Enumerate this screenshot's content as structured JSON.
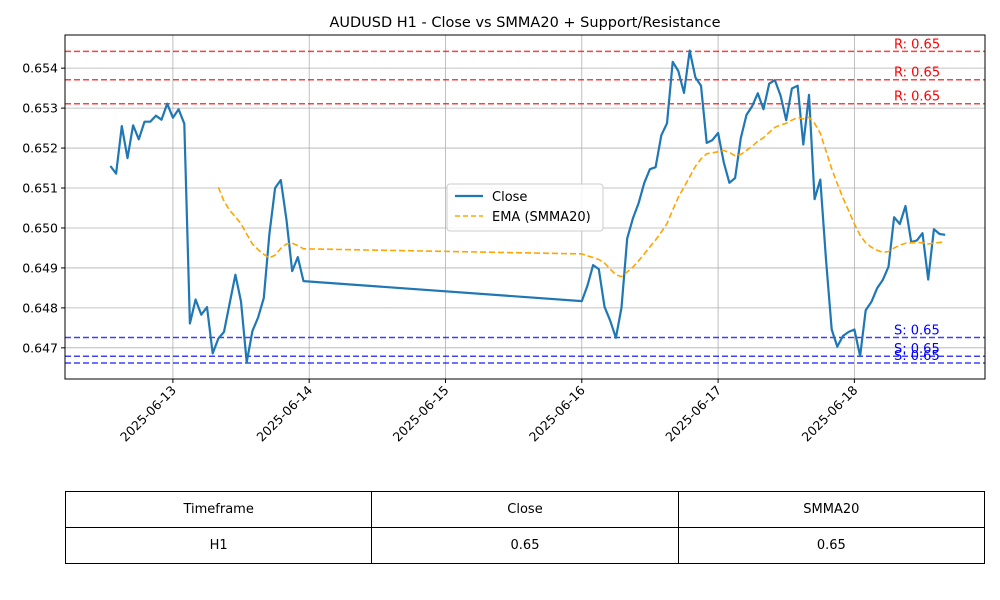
{
  "chart_data": {
    "type": "line",
    "title": "AUDUSD H1 - Close vs SMMA20 + Support/Resistance",
    "xlabel": "",
    "ylabel": "",
    "x_ticks": [
      "2025-06-13",
      "2025-06-14",
      "2025-06-15",
      "2025-06-16",
      "2025-06-17",
      "2025-06-18"
    ],
    "y_ticks": [
      "0.647",
      "0.648",
      "0.649",
      "0.650",
      "0.651",
      "0.652",
      "0.653",
      "0.654"
    ],
    "xlim": [
      "2025-06-12 05:00",
      "2025-06-18 23:00"
    ],
    "ylim": [
      0.64622,
      0.65483
    ],
    "grid": true,
    "legend": "center",
    "series": [
      {
        "name": "Close",
        "color": "#1f77b4",
        "style": "solid",
        "points": [
          [
            "2025-06-12 13:00",
            0.65155
          ],
          [
            "2025-06-12 14:00",
            0.65136
          ],
          [
            "2025-06-12 15:00",
            0.65255
          ],
          [
            "2025-06-12 16:00",
            0.65175
          ],
          [
            "2025-06-12 17:00",
            0.65257
          ],
          [
            "2025-06-12 18:00",
            0.65222
          ],
          [
            "2025-06-12 19:00",
            0.65266
          ],
          [
            "2025-06-12 20:00",
            0.65266
          ],
          [
            "2025-06-12 21:00",
            0.65281
          ],
          [
            "2025-06-12 22:00",
            0.65271
          ],
          [
            "2025-06-12 23:00",
            0.65311
          ],
          [
            "2025-06-13 00:00",
            0.65276
          ],
          [
            "2025-06-13 01:00",
            0.65297
          ],
          [
            "2025-06-13 02:00",
            0.65261
          ],
          [
            "2025-06-13 03:00",
            0.64761
          ],
          [
            "2025-06-13 04:00",
            0.64821
          ],
          [
            "2025-06-13 05:00",
            0.64783
          ],
          [
            "2025-06-13 06:00",
            0.64802
          ],
          [
            "2025-06-13 07:00",
            0.64686
          ],
          [
            "2025-06-13 08:00",
            0.64723
          ],
          [
            "2025-06-13 09:00",
            0.6474
          ],
          [
            "2025-06-13 10:00",
            0.64812
          ],
          [
            "2025-06-13 11:00",
            0.64883
          ],
          [
            "2025-06-13 12:00",
            0.64816
          ],
          [
            "2025-06-13 13:00",
            0.64664
          ],
          [
            "2025-06-13 14:00",
            0.64742
          ],
          [
            "2025-06-13 15:00",
            0.64776
          ],
          [
            "2025-06-13 16:00",
            0.64825
          ],
          [
            "2025-06-13 17:00",
            0.64985
          ],
          [
            "2025-06-13 18:00",
            0.651
          ],
          [
            "2025-06-13 19:00",
            0.6512
          ],
          [
            "2025-06-13 20:00",
            0.6502
          ],
          [
            "2025-06-13 21:00",
            0.64892
          ],
          [
            "2025-06-13 22:00",
            0.64927
          ],
          [
            "2025-06-13 23:00",
            0.64867
          ],
          [
            "2025-06-16 00:00",
            0.64817
          ],
          [
            "2025-06-16 01:00",
            0.64856
          ],
          [
            "2025-06-16 02:00",
            0.64907
          ],
          [
            "2025-06-16 03:00",
            0.64897
          ],
          [
            "2025-06-16 04:00",
            0.64803
          ],
          [
            "2025-06-16 05:00",
            0.64768
          ],
          [
            "2025-06-16 06:00",
            0.64725
          ],
          [
            "2025-06-16 07:00",
            0.64801
          ],
          [
            "2025-06-16 08:00",
            0.64974
          ],
          [
            "2025-06-16 09:00",
            0.65024
          ],
          [
            "2025-06-16 10:00",
            0.65062
          ],
          [
            "2025-06-16 11:00",
            0.65113
          ],
          [
            "2025-06-16 12:00",
            0.65147
          ],
          [
            "2025-06-16 13:00",
            0.65152
          ],
          [
            "2025-06-16 14:00",
            0.65232
          ],
          [
            "2025-06-16 15:00",
            0.65262
          ],
          [
            "2025-06-16 16:00",
            0.65416
          ],
          [
            "2025-06-16 17:00",
            0.65393
          ],
          [
            "2025-06-16 18:00",
            0.65338
          ],
          [
            "2025-06-16 19:00",
            0.65444
          ],
          [
            "2025-06-16 20:00",
            0.65377
          ],
          [
            "2025-06-16 21:00",
            0.65356
          ],
          [
            "2025-06-16 22:00",
            0.65213
          ],
          [
            "2025-06-16 23:00",
            0.6522
          ],
          [
            "2025-06-17 00:00",
            0.65238
          ],
          [
            "2025-06-17 01:00",
            0.65164
          ],
          [
            "2025-06-17 02:00",
            0.65113
          ],
          [
            "2025-06-17 03:00",
            0.65125
          ],
          [
            "2025-06-17 04:00",
            0.65225
          ],
          [
            "2025-06-17 05:00",
            0.65283
          ],
          [
            "2025-06-17 06:00",
            0.65305
          ],
          [
            "2025-06-17 07:00",
            0.65337
          ],
          [
            "2025-06-17 08:00",
            0.65297
          ],
          [
            "2025-06-17 09:00",
            0.65361
          ],
          [
            "2025-06-17 10:00",
            0.6537
          ],
          [
            "2025-06-17 11:00",
            0.65331
          ],
          [
            "2025-06-17 12:00",
            0.6527
          ],
          [
            "2025-06-17 13:00",
            0.65349
          ],
          [
            "2025-06-17 14:00",
            0.65356
          ],
          [
            "2025-06-17 15:00",
            0.65209
          ],
          [
            "2025-06-17 16:00",
            0.65333
          ],
          [
            "2025-06-17 17:00",
            0.65072
          ],
          [
            "2025-06-17 18:00",
            0.65121
          ],
          [
            "2025-06-17 19:00",
            0.64921
          ],
          [
            "2025-06-17 20:00",
            0.64746
          ],
          [
            "2025-06-17 21:00",
            0.64703
          ],
          [
            "2025-06-17 22:00",
            0.6473
          ],
          [
            "2025-06-17 23:00",
            0.6474
          ],
          [
            "2025-06-18 00:00",
            0.64746
          ],
          [
            "2025-06-18 01:00",
            0.64679
          ],
          [
            "2025-06-18 02:00",
            0.64794
          ],
          [
            "2025-06-18 03:00",
            0.64815
          ],
          [
            "2025-06-18 04:00",
            0.64849
          ],
          [
            "2025-06-18 05:00",
            0.6487
          ],
          [
            "2025-06-18 06:00",
            0.64903
          ],
          [
            "2025-06-18 07:00",
            0.65027
          ],
          [
            "2025-06-18 08:00",
            0.6501
          ],
          [
            "2025-06-18 09:00",
            0.65055
          ],
          [
            "2025-06-18 10:00",
            0.64965
          ],
          [
            "2025-06-18 11:00",
            0.64969
          ],
          [
            "2025-06-18 12:00",
            0.64987
          ],
          [
            "2025-06-18 13:00",
            0.64871
          ],
          [
            "2025-06-18 14:00",
            0.64997
          ],
          [
            "2025-06-18 15:00",
            0.64985
          ],
          [
            "2025-06-18 16:00",
            0.64983
          ]
        ]
      },
      {
        "name": "EMA (SMMA20)",
        "color": "#ffa500",
        "style": "dashed",
        "points": [
          [
            "2025-06-13 08:00",
            0.65102
          ],
          [
            "2025-06-13 09:00",
            0.65067
          ],
          [
            "2025-06-13 10:00",
            0.65044
          ],
          [
            "2025-06-13 11:00",
            0.65028
          ],
          [
            "2025-06-13 12:00",
            0.65011
          ],
          [
            "2025-06-13 13:00",
            0.64985
          ],
          [
            "2025-06-13 14:00",
            0.6496
          ],
          [
            "2025-06-13 15:00",
            0.64946
          ],
          [
            "2025-06-13 16:00",
            0.64934
          ],
          [
            "2025-06-13 17:00",
            0.64925
          ],
          [
            "2025-06-13 18:00",
            0.64932
          ],
          [
            "2025-06-13 19:00",
            0.64949
          ],
          [
            "2025-06-13 20:00",
            0.6496
          ],
          [
            "2025-06-13 21:00",
            0.64962
          ],
          [
            "2025-06-13 22:00",
            0.64956
          ],
          [
            "2025-06-13 23:00",
            0.64948
          ],
          [
            "2025-06-16 00:00",
            0.64935
          ],
          [
            "2025-06-16 01:00",
            0.6493
          ],
          [
            "2025-06-16 02:00",
            0.64926
          ],
          [
            "2025-06-16 03:00",
            0.64921
          ],
          [
            "2025-06-16 04:00",
            0.64912
          ],
          [
            "2025-06-16 05:00",
            0.64897
          ],
          [
            "2025-06-16 06:00",
            0.64883
          ],
          [
            "2025-06-16 07:00",
            0.64878
          ],
          [
            "2025-06-16 08:00",
            0.6489
          ],
          [
            "2025-06-16 09:00",
            0.64902
          ],
          [
            "2025-06-16 10:00",
            0.64918
          ],
          [
            "2025-06-16 11:00",
            0.64935
          ],
          [
            "2025-06-16 12:00",
            0.64953
          ],
          [
            "2025-06-16 13:00",
            0.6497
          ],
          [
            "2025-06-16 14:00",
            0.6499
          ],
          [
            "2025-06-16 15:00",
            0.65011
          ],
          [
            "2025-06-16 16:00",
            0.65045
          ],
          [
            "2025-06-16 17:00",
            0.65077
          ],
          [
            "2025-06-16 18:00",
            0.65102
          ],
          [
            "2025-06-16 19:00",
            0.65128
          ],
          [
            "2025-06-16 20:00",
            0.65154
          ],
          [
            "2025-06-16 21:00",
            0.65173
          ],
          [
            "2025-06-16 22:00",
            0.65186
          ],
          [
            "2025-06-16 23:00",
            0.65188
          ],
          [
            "2025-06-17 00:00",
            0.65191
          ],
          [
            "2025-06-17 01:00",
            0.65194
          ],
          [
            "2025-06-17 02:00",
            0.65189
          ],
          [
            "2025-06-17 03:00",
            0.65181
          ],
          [
            "2025-06-17 04:00",
            0.65184
          ],
          [
            "2025-06-17 05:00",
            0.65194
          ],
          [
            "2025-06-17 06:00",
            0.65205
          ],
          [
            "2025-06-17 07:00",
            0.65217
          ],
          [
            "2025-06-17 08:00",
            0.65226
          ],
          [
            "2025-06-17 09:00",
            0.65239
          ],
          [
            "2025-06-17 10:00",
            0.65252
          ],
          [
            "2025-06-17 11:00",
            0.65258
          ],
          [
            "2025-06-17 12:00",
            0.65262
          ],
          [
            "2025-06-17 13:00",
            0.6527
          ],
          [
            "2025-06-17 14:00",
            0.65276
          ],
          [
            "2025-06-17 15:00",
            0.65273
          ],
          [
            "2025-06-17 16:00",
            0.65277
          ],
          [
            "2025-06-17 17:00",
            0.65262
          ],
          [
            "2025-06-17 18:00",
            0.65237
          ],
          [
            "2025-06-17 19:00",
            0.65193
          ],
          [
            "2025-06-17 20:00",
            0.65148
          ],
          [
            "2025-06-17 21:00",
            0.65111
          ],
          [
            "2025-06-17 22:00",
            0.65075
          ],
          [
            "2025-06-17 23:00",
            0.65043
          ],
          [
            "2025-06-18 00:00",
            0.6501
          ],
          [
            "2025-06-18 01:00",
            0.64982
          ],
          [
            "2025-06-18 02:00",
            0.64963
          ],
          [
            "2025-06-18 03:00",
            0.64952
          ],
          [
            "2025-06-18 04:00",
            0.64944
          ],
          [
            "2025-06-18 05:00",
            0.64939
          ],
          [
            "2025-06-18 06:00",
            0.64941
          ],
          [
            "2025-06-18 07:00",
            0.6495
          ],
          [
            "2025-06-18 08:00",
            0.64957
          ],
          [
            "2025-06-18 09:00",
            0.64962
          ],
          [
            "2025-06-18 10:00",
            0.64963
          ],
          [
            "2025-06-18 11:00",
            0.64964
          ],
          [
            "2025-06-18 12:00",
            0.64963
          ],
          [
            "2025-06-18 13:00",
            0.6496
          ],
          [
            "2025-06-18 14:00",
            0.64962
          ],
          [
            "2025-06-18 15:00",
            0.64964
          ],
          [
            "2025-06-18 16:00",
            0.64965
          ]
        ]
      }
    ],
    "resistance_levels": [
      {
        "value": 0.65442,
        "label": "R: 0.65"
      },
      {
        "value": 0.65371,
        "label": "R: 0.65"
      },
      {
        "value": 0.65311,
        "label": "R: 0.65"
      }
    ],
    "support_levels": [
      {
        "value": 0.64726,
        "label": "S: 0.65"
      },
      {
        "value": 0.64679,
        "label": "S: 0.65"
      },
      {
        "value": 0.64662,
        "label": "S: 0.65"
      }
    ],
    "colors": {
      "resistance": "#ff0000",
      "support": "#0000ff",
      "close": "#1f77b4",
      "smma": "#ffa500"
    }
  },
  "table": {
    "headers": [
      "Timeframe",
      "Close",
      "SMMA20"
    ],
    "row": [
      "H1",
      "0.65",
      "0.65"
    ]
  }
}
